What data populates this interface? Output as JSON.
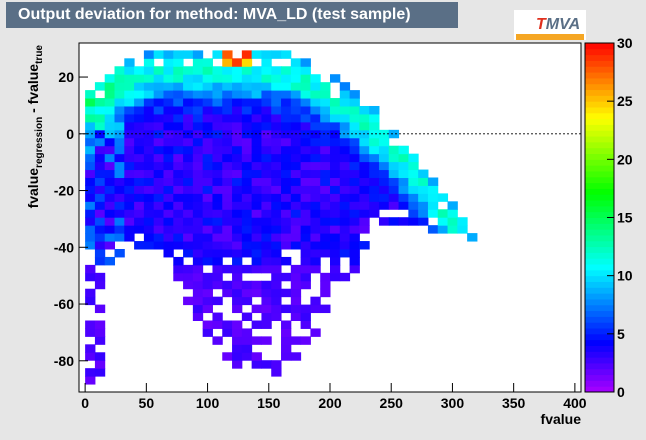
{
  "title": "Output deviation for method: MVA_LD (test sample)",
  "logo": {
    "letter_t": "T",
    "rest": "MVA"
  },
  "chart_data": {
    "type": "heatmap",
    "title": "Output deviation for method: MVA_LD (test sample)",
    "xlabel": "fvalue",
    "ylabel": "fvalue_regression - fvalue_true",
    "ylabel_parts": {
      "base": "fvalue",
      "sub1": "regression",
      "mid": " - fvalue",
      "sub2": "true"
    },
    "xlim": [
      -5,
      405
    ],
    "ylim": [
      -91,
      32
    ],
    "x_ticks": [
      0,
      50,
      100,
      150,
      200,
      250,
      300,
      350,
      400
    ],
    "y_ticks": [
      -80,
      -60,
      -40,
      -20,
      0,
      20
    ],
    "z_range": [
      0,
      30
    ],
    "z_ticks": [
      0,
      5,
      10,
      15,
      20,
      25,
      30
    ],
    "colorscale": "rainbow",
    "grid": false,
    "reference_line_y": 0
  }
}
